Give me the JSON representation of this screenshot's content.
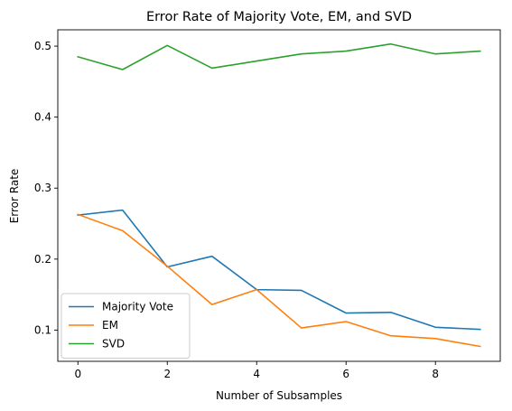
{
  "chart_data": {
    "type": "line",
    "title": "Error Rate of Majority Vote, EM, and SVD",
    "xlabel": "Number of Subsamples",
    "ylabel": "Error Rate",
    "x": [
      0,
      1,
      2,
      3,
      4,
      5,
      6,
      7,
      8,
      9
    ],
    "xlim": [
      -0.45,
      9.45
    ],
    "ylim": [
      0.056,
      0.523
    ],
    "xticks": [
      0,
      2,
      4,
      6,
      8
    ],
    "yticks": [
      0.1,
      0.2,
      0.3,
      0.4,
      0.5
    ],
    "xtick_labels": [
      "0",
      "2",
      "4",
      "6",
      "8"
    ],
    "ytick_labels": [
      "0.1",
      "0.2",
      "0.3",
      "0.4",
      "0.5"
    ],
    "grid": false,
    "legend_position": "lower-left",
    "series": [
      {
        "name": "Majority Vote",
        "color": "#1f77b4",
        "values": [
          0.262,
          0.269,
          0.189,
          0.204,
          0.157,
          0.156,
          0.124,
          0.125,
          0.104,
          0.101
        ]
      },
      {
        "name": "EM",
        "color": "#ff7f0e",
        "values": [
          0.263,
          0.24,
          0.19,
          0.136,
          0.157,
          0.103,
          0.112,
          0.092,
          0.088,
          0.077
        ]
      },
      {
        "name": "SVD",
        "color": "#2ca02c",
        "values": [
          0.485,
          0.467,
          0.501,
          0.469,
          0.479,
          0.489,
          0.493,
          0.503,
          0.489,
          0.493
        ]
      }
    ]
  }
}
